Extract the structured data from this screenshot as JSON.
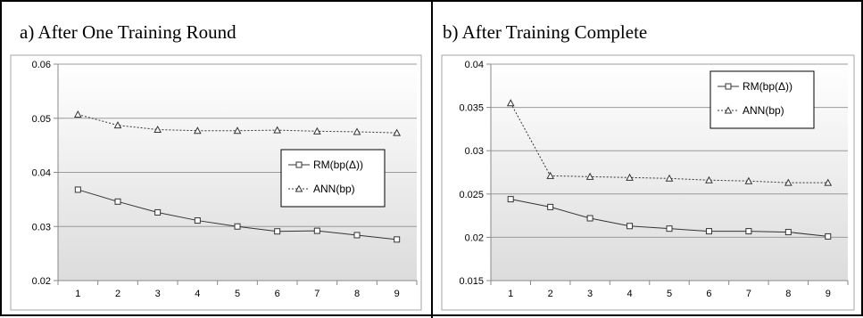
{
  "panels": [
    {
      "title": "a) After One Training Round"
    },
    {
      "title": "b) After Training Complete"
    }
  ],
  "chart_data": [
    {
      "type": "line",
      "title": "a) After One Training Round",
      "categories": [
        1,
        2,
        3,
        4,
        5,
        6,
        7,
        8,
        9
      ],
      "x_tick_labels": [
        "1",
        "2",
        "3",
        "4",
        "5",
        "6",
        "7",
        "8",
        "9"
      ],
      "ylim": [
        0.02,
        0.06
      ],
      "y_ticks": [
        0.02,
        0.03,
        0.04,
        0.05,
        0.06
      ],
      "y_tick_labels": [
        "0.02",
        "0.03",
        "0.04",
        "0.05",
        "0.06"
      ],
      "grid": true,
      "legend_placement": "center-right",
      "series": [
        {
          "name": "RM(bp(Δ))",
          "marker": "square",
          "style": "solid",
          "color": "#333333",
          "values": [
            0.0368,
            0.0346,
            0.0326,
            0.0311,
            0.03,
            0.0291,
            0.0292,
            0.0284,
            0.0276
          ]
        },
        {
          "name": "ANN(bp)",
          "marker": "triangle",
          "style": "dotted",
          "color": "#333333",
          "values": [
            0.0507,
            0.0487,
            0.0479,
            0.0477,
            0.0477,
            0.0478,
            0.0476,
            0.0475,
            0.0473
          ]
        }
      ]
    },
    {
      "type": "line",
      "title": "b) After Training Complete",
      "categories": [
        1,
        2,
        3,
        4,
        5,
        6,
        7,
        8,
        9
      ],
      "x_tick_labels": [
        "1",
        "2",
        "3",
        "4",
        "5",
        "6",
        "7",
        "8",
        "9"
      ],
      "ylim": [
        0.015,
        0.04
      ],
      "y_ticks": [
        0.015,
        0.02,
        0.025,
        0.03,
        0.035,
        0.04
      ],
      "y_tick_labels": [
        "0.015",
        "0.02",
        "0.025",
        "0.03",
        "0.035",
        "0.04"
      ],
      "grid": true,
      "legend_placement": "top-right",
      "series": [
        {
          "name": "RM(bp(Δ))",
          "marker": "square",
          "style": "solid",
          "color": "#333333",
          "values": [
            0.0244,
            0.0235,
            0.0222,
            0.0213,
            0.021,
            0.0207,
            0.0207,
            0.0206,
            0.0201
          ]
        },
        {
          "name": "ANN(bp)",
          "marker": "triangle",
          "style": "dotted",
          "color": "#333333",
          "values": [
            0.0355,
            0.0271,
            0.027,
            0.0269,
            0.0268,
            0.0266,
            0.0265,
            0.0263,
            0.0263
          ]
        }
      ]
    }
  ]
}
